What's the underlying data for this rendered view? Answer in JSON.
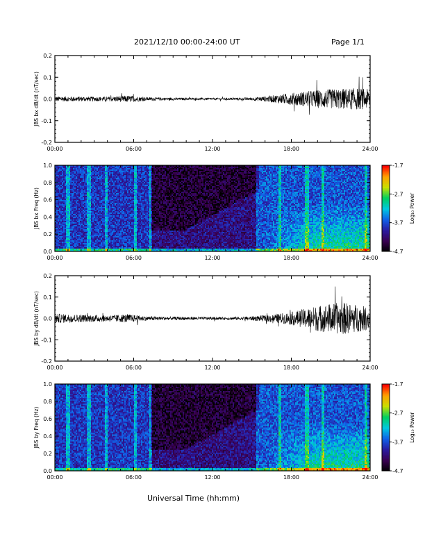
{
  "header": {
    "title": "2021/12/10  00:00-24:00 UT",
    "page": "Page 1/1"
  },
  "x_axis": {
    "label": "Universal Time (hh:mm)",
    "ticks": [
      "00:00",
      "06:00",
      "12:00",
      "18:00",
      "24:00"
    ],
    "range_hours": [
      0,
      24
    ]
  },
  "colorbar": {
    "label": "Log₁₀ Power",
    "ticks": [
      "-1.7",
      "-2.7",
      "-3.7",
      "-4.7"
    ],
    "range": [
      -4.7,
      -1.7
    ],
    "palette": [
      "#000000",
      "#3a0050",
      "#2a1aa0",
      "#1060e8",
      "#00c8e0",
      "#00d060",
      "#c8e000",
      "#ffa000",
      "#ff0000"
    ]
  },
  "chart_data": [
    {
      "type": "line",
      "ylabel": "JBS bx dB/dt (nT/sec)",
      "ylim": [
        -0.2,
        0.2
      ],
      "yticks": [
        "0.2",
        "0.1",
        "0.0",
        "-0.1",
        "-0.2"
      ],
      "xlim": [
        0,
        24
      ],
      "envelope": {
        "x_hours": [
          0,
          2,
          4,
          5.5,
          7,
          9,
          11,
          13,
          15,
          16,
          17,
          18,
          19,
          20,
          21,
          22,
          23,
          24
        ],
        "amplitude": [
          0.012,
          0.011,
          0.01,
          0.016,
          0.008,
          0.006,
          0.005,
          0.005,
          0.007,
          0.012,
          0.02,
          0.028,
          0.035,
          0.042,
          0.045,
          0.048,
          0.05,
          0.045
        ]
      }
    },
    {
      "type": "heatmap",
      "ylabel": "JBS bx Freq (Hz)",
      "ylim": [
        0.0,
        1.0
      ],
      "yticks": [
        "1.0",
        "0.8",
        "0.6",
        "0.4",
        "0.2",
        "0.0"
      ],
      "xlim": [
        0,
        24
      ],
      "zlim": [
        -4.7,
        -1.7
      ]
    },
    {
      "type": "line",
      "ylabel": "JBS by dB/dt (nT/sec)",
      "ylim": [
        -0.2,
        0.2
      ],
      "yticks": [
        "0.2",
        "0.1",
        "0.0",
        "-0.1",
        "-0.2"
      ],
      "xlim": [
        0,
        24
      ],
      "envelope": {
        "x_hours": [
          0,
          2,
          4,
          5.5,
          7,
          9,
          11,
          13,
          15,
          16,
          17,
          18,
          19,
          20,
          21,
          22,
          23,
          24
        ],
        "amplitude": [
          0.022,
          0.018,
          0.015,
          0.02,
          0.01,
          0.008,
          0.007,
          0.006,
          0.01,
          0.015,
          0.022,
          0.03,
          0.045,
          0.06,
          0.07,
          0.075,
          0.065,
          0.05
        ]
      }
    },
    {
      "type": "heatmap",
      "ylabel": "JBS by Freq (Hz)",
      "ylim": [
        0.0,
        1.0
      ],
      "yticks": [
        "1.0",
        "0.8",
        "0.6",
        "0.4",
        "0.2",
        "0.0"
      ],
      "xlim": [
        0,
        24
      ],
      "zlim": [
        -4.7,
        -1.7
      ]
    }
  ]
}
